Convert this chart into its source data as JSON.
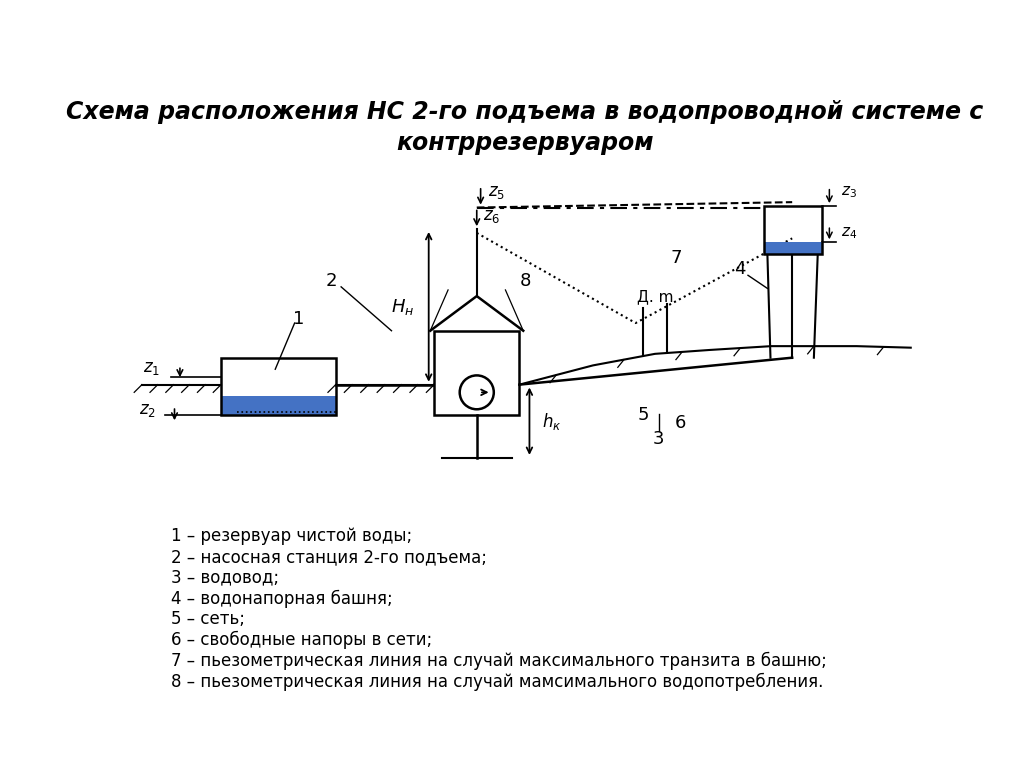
{
  "title_line1": "Схема расположения НС 2-го подъема в водопроводной системе с",
  "title_line2": "контррезервуаром",
  "bg_color": "#ffffff",
  "legend_items": [
    "1 – резервуар чистой воды;",
    "2 – насосная станция 2-го подъема;",
    "3 – водовод;",
    "4 – водонапорная башня;",
    "5 – сеть;",
    "6 – свободные напоры в сети;",
    "7 – пьезометрическая линия на случай максимального транзита в башню;",
    "8 – пьезометрическая линия на случай мамсимального водопотребления."
  ],
  "water_color": "#4472C4",
  "line_color": "#000000"
}
